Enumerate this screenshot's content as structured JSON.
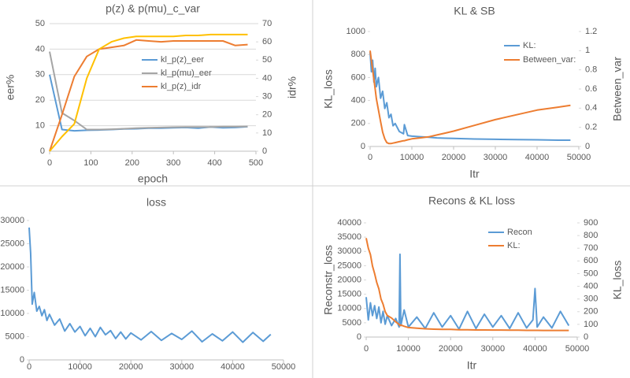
{
  "chart_data": [
    {
      "type": "line",
      "title": "p(z) & p(mu)_c_var",
      "x_label": "epoch",
      "y_label": "eer%",
      "y2_label": "idr%",
      "x": [
        0,
        30,
        60,
        90,
        120,
        150,
        180,
        210,
        240,
        270,
        300,
        330,
        360,
        390,
        420,
        450,
        480
      ],
      "xlim": [
        0,
        500
      ],
      "xticks": [
        0,
        100,
        200,
        300,
        400,
        500
      ],
      "ylim": [
        0,
        50
      ],
      "yticks": [
        0,
        10,
        20,
        30,
        40,
        50
      ],
      "y2lim": [
        0,
        70
      ],
      "y2ticks": [
        0,
        10,
        20,
        30,
        40,
        50,
        60,
        70
      ],
      "grid": true,
      "series": [
        {
          "name": "kl_p(z)_eer",
          "color": "#5b9bd5",
          "values": [
            30,
            8.5,
            8,
            8.2,
            8.3,
            8.5,
            8.7,
            8.8,
            9,
            9,
            9.2,
            9.3,
            9,
            9.5,
            9.2,
            9.3,
            9.6
          ]
        },
        {
          "name": "kl_p(mu)_eer",
          "color": "#a5a5a5",
          "values": [
            39,
            15,
            12,
            8.5,
            8.5,
            8.6,
            8.8,
            9,
            9.2,
            9.3,
            9.4,
            9.5,
            9.5,
            9.5,
            9.6,
            9.6,
            9.7
          ]
        },
        {
          "name": "kl_p(z)_idr",
          "color": "#ed7d31",
          "axis": "y2",
          "values": [
            0,
            20,
            41,
            52,
            56,
            57,
            58,
            61,
            60.5,
            60,
            60.5,
            60.5,
            60.5,
            60.5,
            60.5,
            58,
            58.5
          ]
        },
        {
          "color": "#ffc000",
          "axis": "y2",
          "values": [
            0,
            8,
            15,
            40,
            56,
            60,
            62,
            63,
            63,
            63,
            63,
            63.5,
            63.5,
            64,
            64,
            64,
            64
          ]
        }
      ]
    },
    {
      "type": "line",
      "title": "KL & SB",
      "x_label": "Itr",
      "y_label": "KL_loss",
      "y2_label": "Between_var",
      "x": [
        0,
        300,
        600,
        900,
        1200,
        1500,
        2000,
        2500,
        3000,
        3500,
        4000,
        4500,
        5000,
        5500,
        6000,
        7000,
        8000,
        8200,
        9000,
        10000,
        12000,
        14000,
        16000,
        18000,
        20000,
        25000,
        30000,
        35000,
        40000,
        45000,
        48000
      ],
      "xlim": [
        0,
        50000
      ],
      "xticks": [
        0,
        10000,
        20000,
        30000,
        40000,
        50000
      ],
      "ylim": [
        0,
        1000
      ],
      "yticks": [
        0,
        200,
        400,
        600,
        800,
        1000
      ],
      "y2lim": [
        0,
        1.2
      ],
      "y2ticks": [
        0,
        0.2,
        0.4,
        0.6,
        0.8,
        1,
        1.2
      ],
      "grid": false,
      "series": [
        {
          "name": "KL:",
          "color": "#5b9bd5",
          "values": [
            820,
            650,
            750,
            560,
            680,
            520,
            600,
            420,
            480,
            330,
            380,
            250,
            280,
            180,
            200,
            130,
            110,
            190,
            95,
            90,
            85,
            80,
            75,
            72,
            70,
            65,
            62,
            60,
            58,
            55,
            55
          ]
        },
        {
          "name": "Between_var:",
          "color": "#ed7d31",
          "axis": "y2",
          "values": [
            1.0,
            0.9,
            0.8,
            0.7,
            0.6,
            0.5,
            0.38,
            0.26,
            0.15,
            0.08,
            0.04,
            0.03,
            0.03,
            0.035,
            0.04,
            0.05,
            0.06,
            0.06,
            0.07,
            0.08,
            0.09,
            0.1,
            0.12,
            0.14,
            0.16,
            0.22,
            0.28,
            0.33,
            0.38,
            0.41,
            0.43
          ]
        }
      ]
    },
    {
      "type": "line",
      "title": "loss",
      "x": [
        0,
        300,
        600,
        1000,
        1500,
        2000,
        2500,
        3000,
        3500,
        4000,
        5000,
        6000,
        7000,
        8000,
        9000,
        10000,
        11000,
        12000,
        13000,
        14000,
        15000,
        16000,
        17000,
        18000,
        19000,
        20000,
        22000,
        24000,
        26000,
        28000,
        30000,
        32000,
        34000,
        36000,
        38000,
        40000,
        42000,
        44000,
        46000,
        47500
      ],
      "xlim": [
        0,
        50000
      ],
      "xticks": [
        0,
        10000,
        20000,
        30000,
        40000,
        50000
      ],
      "ylim": [
        0,
        30000
      ],
      "yticks": [
        0,
        5000,
        10000,
        15000,
        20000,
        25000,
        30000
      ],
      "grid": false,
      "series": [
        {
          "color": "#5b9bd5",
          "values": [
            28500,
            23000,
            12000,
            14500,
            10500,
            11500,
            9500,
            10800,
            8500,
            9800,
            7500,
            8800,
            6200,
            7800,
            6000,
            7200,
            5200,
            6800,
            5000,
            7000,
            5400,
            6300,
            4600,
            6000,
            4500,
            5800,
            4300,
            6100,
            4200,
            5700,
            4400,
            6200,
            3900,
            5600,
            4100,
            6000,
            3800,
            5900,
            4000,
            5500
          ]
        }
      ]
    },
    {
      "type": "line",
      "title": "Recons & KL loss",
      "x_label": "Itr",
      "y_label": "Reconstr_loss",
      "y2_label": "KL_loss",
      "x": [
        0,
        500,
        1000,
        1500,
        2000,
        2500,
        3000,
        3500,
        4000,
        4500,
        5000,
        6000,
        7000,
        7800,
        8000,
        8200,
        9000,
        10000,
        12000,
        14000,
        16000,
        18000,
        20000,
        22000,
        24000,
        26000,
        28000,
        30000,
        32000,
        34000,
        36000,
        38000,
        39500,
        40000,
        40500,
        42000,
        44000,
        46000,
        48000
      ],
      "xlim": [
        0,
        50000
      ],
      "xticks": [
        0,
        10000,
        20000,
        30000,
        40000,
        50000
      ],
      "ylim": [
        0,
        40000
      ],
      "yticks": [
        0,
        5000,
        10000,
        15000,
        20000,
        25000,
        30000,
        35000,
        40000
      ],
      "y2lim": [
        0,
        900
      ],
      "y2ticks": [
        0,
        100,
        200,
        300,
        400,
        500,
        600,
        700,
        800,
        900
      ],
      "grid": false,
      "series": [
        {
          "name": "Recon",
          "color": "#5b9bd5",
          "values": [
            14000,
            6000,
            12000,
            7500,
            11000,
            6500,
            10500,
            5000,
            9000,
            4500,
            7500,
            4000,
            6500,
            3500,
            29000,
            4000,
            9500,
            3500,
            7000,
            3000,
            8500,
            3500,
            7500,
            2800,
            9000,
            3000,
            8000,
            3500,
            7500,
            3000,
            8500,
            3200,
            6000,
            17000,
            3500,
            7000,
            3200,
            9000,
            4000
          ]
        },
        {
          "name": "KL:",
          "color": "#ed7d31",
          "axis": "y2",
          "values": [
            780,
            700,
            650,
            560,
            500,
            430,
            380,
            300,
            260,
            200,
            170,
            150,
            120,
            100,
            90,
            95,
            85,
            75,
            70,
            65,
            62,
            60,
            60,
            58,
            57,
            56,
            56,
            55,
            55,
            54,
            54,
            53,
            53,
            53,
            53,
            52,
            52,
            52,
            52
          ]
        }
      ]
    }
  ]
}
